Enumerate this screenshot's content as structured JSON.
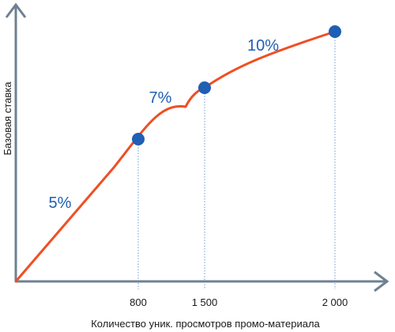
{
  "chart_data": {
    "type": "line",
    "title": "",
    "xlabel": "Количество уник. просмотров промо-материала",
    "ylabel": "Базовая ставка",
    "x_ticks": [
      "800",
      "1 500",
      "2 000"
    ],
    "points": [
      {
        "x": 0,
        "y": 0
      },
      {
        "x": 800,
        "y": 5
      },
      {
        "x": 1500,
        "y": 7
      },
      {
        "x": 2000,
        "y": 10
      }
    ],
    "marked_x": [
      800,
      1500,
      2000
    ],
    "segment_labels": [
      "5%",
      "7%",
      "10%"
    ],
    "xlim": [
      0,
      2000
    ],
    "ylim": [
      0,
      10
    ],
    "grid": false,
    "legend": "none"
  },
  "colors": {
    "line": "#f04e23",
    "marker": "#1f5fb4",
    "label": "#1f5fb4",
    "axis": "#6e8193",
    "guide": "#6b9bcf"
  }
}
